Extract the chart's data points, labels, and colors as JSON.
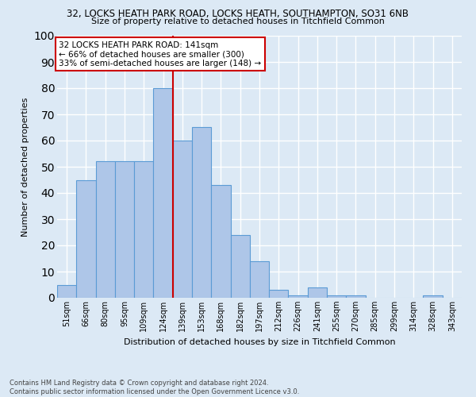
{
  "title_line1": "32, LOCKS HEATH PARK ROAD, LOCKS HEATH, SOUTHAMPTON, SO31 6NB",
  "title_line2": "Size of property relative to detached houses in Titchfield Common",
  "xlabel": "Distribution of detached houses by size in Titchfield Common",
  "ylabel": "Number of detached properties",
  "bar_labels": [
    "51sqm",
    "66sqm",
    "80sqm",
    "95sqm",
    "109sqm",
    "124sqm",
    "139sqm",
    "153sqm",
    "168sqm",
    "182sqm",
    "197sqm",
    "212sqm",
    "226sqm",
    "241sqm",
    "255sqm",
    "270sqm",
    "285sqm",
    "299sqm",
    "314sqm",
    "328sqm",
    "343sqm"
  ],
  "bar_values": [
    5,
    45,
    52,
    52,
    52,
    80,
    60,
    65,
    43,
    24,
    14,
    3,
    1,
    4,
    1,
    1,
    0,
    0,
    0,
    1,
    0
  ],
  "bar_color": "#aec6e8",
  "bar_edge_color": "#5b9bd5",
  "vline_x_idx": 6,
  "vline_color": "#cc0000",
  "ylim": [
    0,
    100
  ],
  "yticks": [
    0,
    10,
    20,
    30,
    40,
    50,
    60,
    70,
    80,
    90,
    100
  ],
  "annotation_text": "32 LOCKS HEATH PARK ROAD: 141sqm\n← 66% of detached houses are smaller (300)\n33% of semi-detached houses are larger (148) →",
  "annotation_box_color": "#ffffff",
  "annotation_box_edge": "#cc0000",
  "footer_line1": "Contains HM Land Registry data © Crown copyright and database right 2024.",
  "footer_line2": "Contains public sector information licensed under the Open Government Licence v3.0.",
  "background_color": "#dce9f5",
  "grid_color": "#ffffff"
}
